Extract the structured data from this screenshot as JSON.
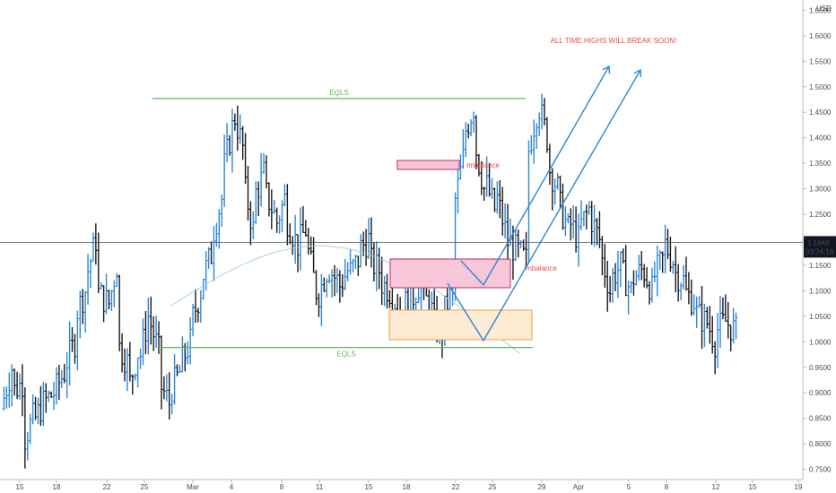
{
  "chart_data": {
    "type": "candlestick",
    "currency": "USD",
    "last_price": "1.1949",
    "countdown": "03:24:16",
    "y_axis": {
      "range": [
        0.73,
        1.67
      ],
      "ticks": [
        "1.6500",
        "1.6000",
        "1.5500",
        "1.5000",
        "1.4500",
        "1.4000",
        "1.3500",
        "1.3000",
        "1.2500",
        "1.2000",
        "1.1500",
        "1.1000",
        "1.0500",
        "1.0000",
        "0.9500",
        "0.9000",
        "0.8500",
        "0.8000",
        "0.7500"
      ]
    },
    "x_axis": {
      "ticks": [
        "15",
        "18",
        "22",
        "25",
        "Mar",
        "4",
        "8",
        "11",
        "15",
        "18",
        "22",
        "25",
        "29",
        "Apr",
        "5",
        "8",
        "12",
        "15",
        "19"
      ]
    },
    "annotations": {
      "headline": "ALL TIME HIGHS WILL BREAK SOON!",
      "top_level_label": "EQLS",
      "top_level_price": 1.477,
      "bottom_level_label": "EQLS",
      "bottom_level_price": 0.989,
      "imbalance_upper_label": "Imbalance",
      "imbalance_lower_label": "Imbalance"
    },
    "colors": {
      "up": "#2e87d6",
      "down": "#1a1a1a",
      "eqls_line": "#5cb85c",
      "imbalance_fill": "#f7c6d9",
      "imbalance_stroke": "#b0306a",
      "demand_fill": "#fdebd3",
      "demand_stroke": "#f0a040",
      "projection": "#2e87d6",
      "headline": "#e84a4a",
      "price_tag": "#131722"
    },
    "series": {
      "path_points": [
        [
          0.87,
          0.95
        ],
        [
          0.9,
          0.92
        ],
        [
          0.8,
          0.85
        ],
        [
          0.84,
          0.88
        ],
        [
          0.88,
          0.9
        ],
        [
          0.9,
          0.94
        ],
        [
          0.95,
          1.0
        ],
        [
          1.05,
          1.1
        ],
        [
          1.12,
          1.2
        ],
        [
          1.1,
          1.08
        ],
        [
          1.05,
          1.15
        ],
        [
          1.0,
          0.96
        ],
        [
          0.9,
          0.98
        ],
        [
          0.95,
          1.05
        ],
        [
          1.05,
          0.98
        ],
        [
          0.92,
          0.88
        ],
        [
          0.9,
          0.94
        ],
        [
          0.95,
          1.0
        ],
        [
          1.03,
          1.1
        ],
        [
          1.12,
          1.17
        ],
        [
          1.2,
          1.28
        ],
        [
          1.32,
          1.42
        ],
        [
          1.46,
          1.38
        ],
        [
          1.32,
          1.22
        ],
        [
          1.28,
          1.33
        ],
        [
          1.3,
          1.25
        ],
        [
          1.22,
          1.28
        ],
        [
          1.25,
          1.2
        ],
        [
          1.18,
          1.22
        ],
        [
          1.2,
          1.1
        ],
        [
          1.08,
          1.14
        ],
        [
          1.15,
          1.12
        ],
        [
          1.1,
          1.14
        ],
        [
          1.13,
          1.16
        ],
        [
          1.18,
          1.2
        ],
        [
          1.16,
          1.14
        ],
        [
          1.12,
          1.1
        ],
        [
          1.1,
          1.06
        ],
        [
          1.05,
          1.1
        ],
        [
          1.08,
          1.12
        ],
        [
          1.1,
          1.06
        ],
        [
          1.04,
          1.02
        ],
        [
          1.05,
          1.1
        ],
        [
          1.25,
          1.36
        ],
        [
          1.4,
          1.46
        ],
        [
          1.4,
          1.3
        ],
        [
          1.32,
          1.26
        ],
        [
          1.3,
          1.22
        ],
        [
          1.2,
          1.18
        ],
        [
          1.18,
          1.16
        ],
        [
          1.35,
          1.45
        ],
        [
          1.48,
          1.4
        ],
        [
          1.35,
          1.3
        ],
        [
          1.28,
          1.22
        ],
        [
          1.24,
          1.2
        ],
        [
          1.22,
          1.26
        ],
        [
          1.25,
          1.2
        ],
        [
          1.18,
          1.1
        ],
        [
          1.12,
          1.15
        ],
        [
          1.14,
          1.1
        ],
        [
          1.12,
          1.14
        ],
        [
          1.15,
          1.1
        ],
        [
          1.12,
          1.16
        ],
        [
          1.2,
          1.16
        ],
        [
          1.14,
          1.12
        ],
        [
          1.1,
          1.08
        ],
        [
          1.06,
          1.04
        ],
        [
          1.05,
          1.0
        ],
        [
          1.02,
          1.04
        ],
        [
          1.04,
          1.02
        ]
      ]
    }
  }
}
